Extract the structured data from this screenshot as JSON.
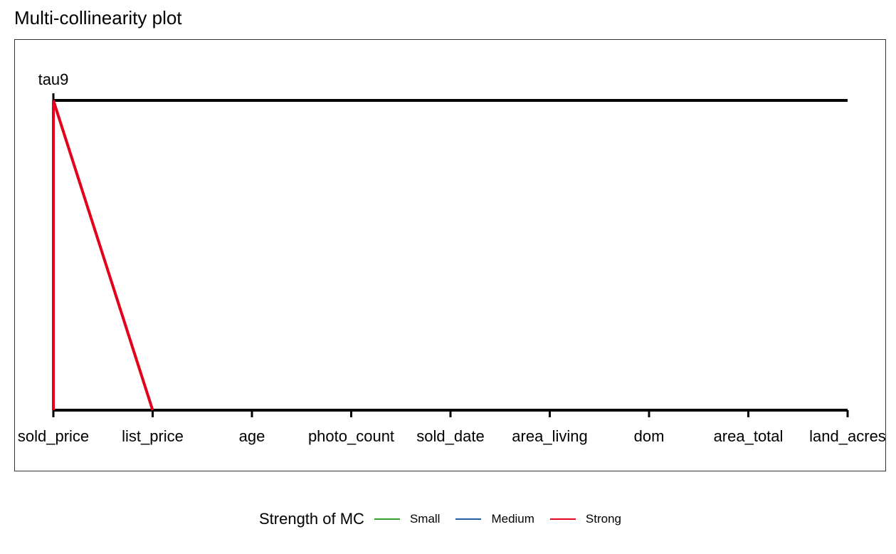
{
  "chart_data": {
    "type": "line",
    "title": "Multi-collinearity plot",
    "categories": [
      "sold_price",
      "list_price",
      "age",
      "photo_count",
      "sold_date",
      "area_living",
      "dom",
      "area_total",
      "land_acres"
    ],
    "y_axis_label": "tau9",
    "series": [
      {
        "name": "Strong",
        "color": "#e3001b",
        "segments": [
          {
            "from": "sold_price",
            "to": "sold_price"
          },
          {
            "from": "sold_price",
            "to": "list_price"
          }
        ]
      }
    ],
    "legend": {
      "title": "Strength of MC",
      "placement": "bottom",
      "items": [
        {
          "label": "Small",
          "color": "#33a02c"
        },
        {
          "label": "Medium",
          "color": "#1f5fa6"
        },
        {
          "label": "Strong",
          "color": "#e3001b"
        }
      ]
    }
  }
}
